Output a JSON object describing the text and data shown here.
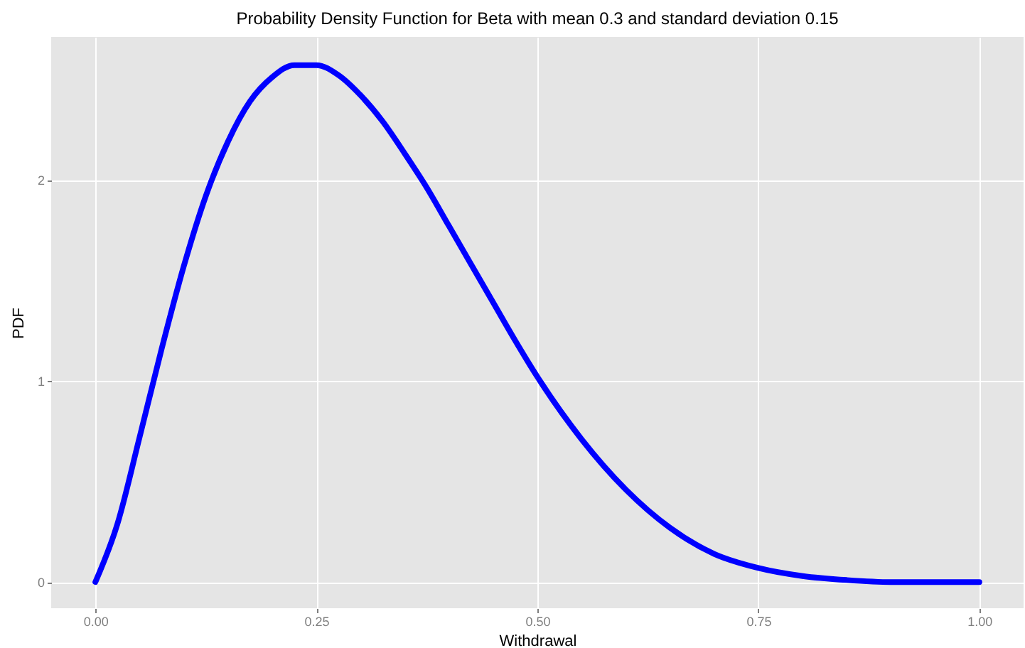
{
  "chart_data": {
    "type": "line",
    "title": "Probability Density Function for Beta with mean 0.3 and standard deviation 0.15",
    "xlabel": "Withdrawal",
    "ylabel": "PDF",
    "x": [
      0,
      0.025,
      0.05,
      0.075,
      0.1,
      0.125,
      0.15,
      0.175,
      0.2,
      0.225,
      0.25,
      0.275,
      0.3,
      0.325,
      0.35,
      0.375,
      0.4,
      0.425,
      0.45,
      0.475,
      0.5,
      0.55,
      0.6,
      0.65,
      0.7,
      0.75,
      0.8,
      0.85,
      0.9,
      0.95,
      1
    ],
    "series": [
      {
        "color": "#0000ff",
        "values": [
          0,
          0.29,
          0.72,
          1.16,
          1.57,
          1.92,
          2.19,
          2.39,
          2.51,
          2.57,
          2.57,
          2.52,
          2.42,
          2.29,
          2.13,
          1.96,
          1.77,
          1.58,
          1.39,
          1.2,
          1.02,
          0.71,
          0.46,
          0.27,
          0.14,
          0.07,
          0.03,
          0.01,
          0,
          0,
          0
        ]
      }
    ],
    "xlim": [
      -0.05,
      1.05
    ],
    "ylim": [
      -0.13,
      2.71
    ],
    "xticks": [
      {
        "value": 0,
        "label": "0.00"
      },
      {
        "value": 0.25,
        "label": "0.25"
      },
      {
        "value": 0.5,
        "label": "0.50"
      },
      {
        "value": 0.75,
        "label": "0.75"
      },
      {
        "value": 1,
        "label": "1.00"
      }
    ],
    "yticks": [
      0,
      1,
      2
    ],
    "grid": true,
    "marker": "none",
    "line_style": "solid"
  }
}
